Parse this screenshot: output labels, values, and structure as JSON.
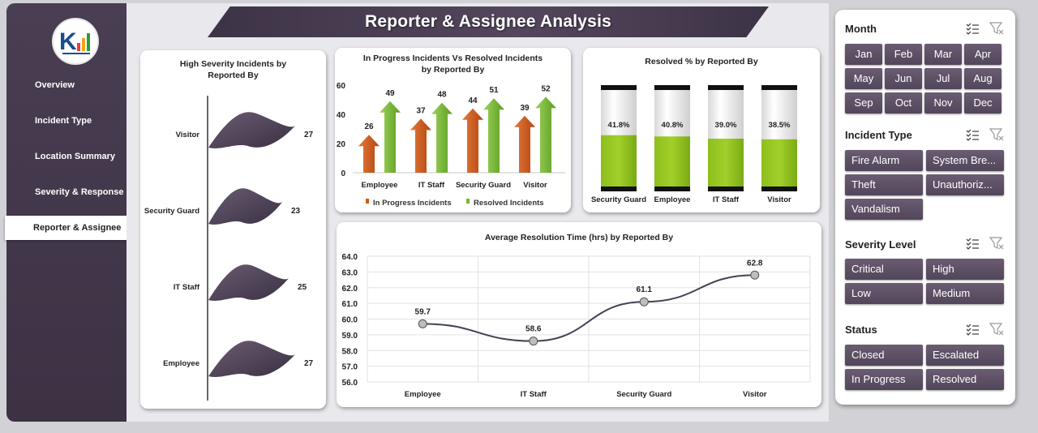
{
  "header": {
    "title": "Reporter & Assignee Analysis"
  },
  "sidebar": {
    "items": [
      {
        "label": "Overview",
        "active": false
      },
      {
        "label": "Incident Type",
        "active": false
      },
      {
        "label": "Location Summary",
        "active": false
      },
      {
        "label": "Severity & Response",
        "active": false
      },
      {
        "label": "Reporter & Assignee",
        "active": true
      }
    ]
  },
  "colors": {
    "accent_dark": "#3d3346",
    "orange": "#d0591a",
    "green": "#72b92e",
    "flag": "#4b3f53",
    "chip": "#5e5166"
  },
  "chart_data": [
    {
      "type": "bar",
      "title": "High Severity Incidents by Reported By",
      "categories": [
        "Visitor",
        "Security Guard",
        "IT Staff",
        "Employee"
      ],
      "values": [
        27,
        23,
        25,
        27
      ]
    },
    {
      "type": "bar",
      "title": "In Progress Incidents Vs Resolved Incidents by Reported By",
      "categories": [
        "Employee",
        "IT Staff",
        "Security Guard",
        "Visitor"
      ],
      "series": [
        {
          "name": "In Progress  Incidents",
          "values": [
            26,
            37,
            44,
            39
          ]
        },
        {
          "name": "Resolved Incidents",
          "values": [
            49,
            48,
            51,
            52
          ]
        }
      ],
      "yticks": [
        "0",
        "20",
        "40",
        "60"
      ],
      "ylim": [
        0,
        60
      ]
    },
    {
      "type": "bar",
      "title": "Resolved % by Reported By",
      "categories": [
        "Security Guard",
        "Employee",
        "IT Staff",
        "Visitor"
      ],
      "values": [
        41.8,
        40.8,
        39.0,
        38.5
      ],
      "labels": [
        "41.8%",
        "40.8%",
        "39.0%",
        "38.5%"
      ],
      "ylim": [
        0,
        100
      ]
    },
    {
      "type": "line",
      "title": "Average Resolution Time (hrs) by Reported By",
      "categories": [
        "Employee",
        "IT Staff",
        "Security Guard",
        "Visitor"
      ],
      "values": [
        59.7,
        58.6,
        61.1,
        62.8
      ],
      "labels": [
        "59.7",
        "58.6",
        "61.1",
        "62.8"
      ],
      "yticks": [
        "64.0",
        "63.0",
        "62.0",
        "61.0",
        "60.0",
        "59.0",
        "58.0",
        "57.0",
        "56.0"
      ],
      "ylim": [
        56,
        64
      ]
    }
  ],
  "slicers": {
    "month": {
      "title": "Month",
      "options": [
        "Jan",
        "Feb",
        "Mar",
        "Apr",
        "May",
        "Jun",
        "Jul",
        "Aug",
        "Sep",
        "Oct",
        "Nov",
        "Dec"
      ]
    },
    "incident_type": {
      "title": "Incident Type",
      "options": [
        "Fire Alarm",
        "System Bre...",
        "Theft",
        "Unauthoriz...",
        "Vandalism"
      ]
    },
    "severity": {
      "title": "Severity Level",
      "options": [
        "Critical",
        "High",
        "Low",
        "Medium"
      ]
    },
    "status": {
      "title": "Status",
      "options": [
        "Closed",
        "Escalated",
        "In Progress",
        "Resolved"
      ]
    }
  }
}
